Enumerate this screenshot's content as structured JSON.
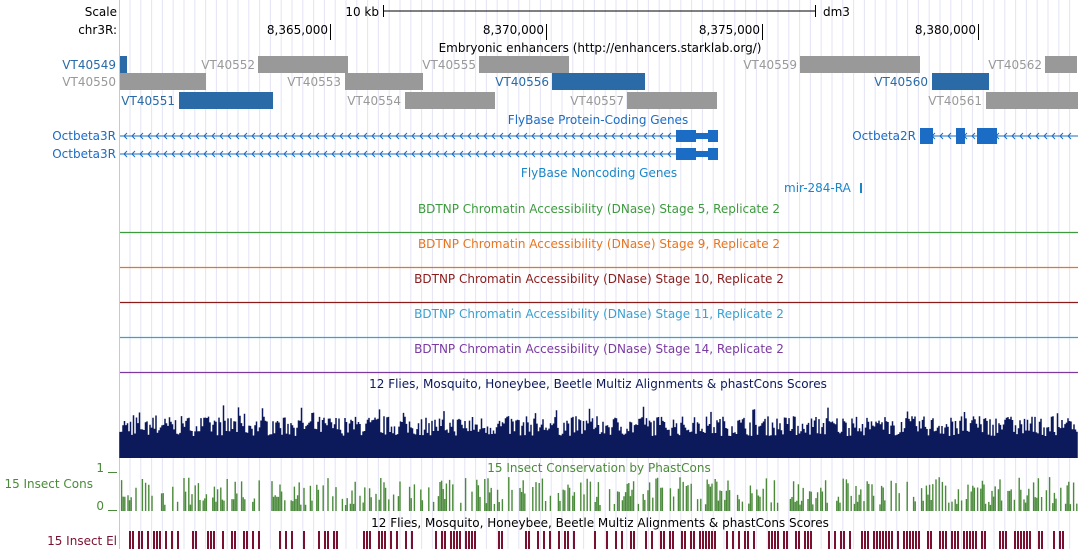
{
  "scale": {
    "label": "Scale",
    "bar_label": "10 kb",
    "assembly": "dm3",
    "chrom_label": "chr3R:",
    "positions": [
      "8,365,000",
      "8,370,000",
      "8,375,000",
      "8,380,000"
    ]
  },
  "tracks": {
    "enhancers": {
      "title": "Embryonic enhancers (http://enhancers.starklab.org/)",
      "items": [
        {
          "name": "VT40549",
          "color": "#2a6aa6"
        },
        {
          "name": "VT40550",
          "color": "#999999"
        },
        {
          "name": "VT40551",
          "color": "#2a6aa6"
        },
        {
          "name": "VT40552",
          "color": "#999999"
        },
        {
          "name": "VT40553",
          "color": "#999999"
        },
        {
          "name": "VT40554",
          "color": "#999999"
        },
        {
          "name": "VT40555",
          "color": "#999999"
        },
        {
          "name": "VT40556",
          "color": "#2a6aa6"
        },
        {
          "name": "VT40557",
          "color": "#999999"
        },
        {
          "name": "VT40559",
          "color": "#999999"
        },
        {
          "name": "VT40560",
          "color": "#2a6aa6"
        },
        {
          "name": "VT40562",
          "color": "#999999"
        },
        {
          "name": "VT40561",
          "color": "#999999"
        }
      ]
    },
    "flybase_coding": {
      "title": "FlyBase Protein-Coding Genes",
      "genes": [
        "Octbeta3R",
        "Octbeta3R",
        "Octbeta2R"
      ],
      "color": "#1a6cc4"
    },
    "flybase_noncoding": {
      "title": "FlyBase Noncoding Genes",
      "genes": [
        "mir-284-RA"
      ],
      "color": "#1a86c8"
    },
    "dnase": [
      {
        "title": "BDTNP Chromatin Accessibility (DNase) Stage 5, Replicate 2",
        "color": "#3e9a3e"
      },
      {
        "title": "BDTNP Chromatin Accessibility (DNase) Stage 9, Replicate 2",
        "color": "#e8741e"
      },
      {
        "title": "BDTNP Chromatin Accessibility (DNase) Stage 10, Replicate 2",
        "color": "#8a1c1c"
      },
      {
        "title": "BDTNP Chromatin Accessibility (DNase) Stage 11, Replicate 2",
        "color": "#3aa0d0"
      },
      {
        "title": "BDTNP Chromatin Accessibility (DNase) Stage 14, Replicate 2",
        "color": "#7a3aa0"
      }
    ],
    "multiz": {
      "title": "12 Flies, Mosquito, Honeybee, Beetle Multiz Alignments & phastCons Scores",
      "color": "#0c1a5c"
    },
    "phastcons": {
      "title": "15 Insect Conservation by PhastCons",
      "side_label": "15 Insect Cons",
      "ymax_label": "1",
      "ymin_label": "0",
      "color": "#4a8a3a"
    },
    "elements": {
      "title": "12 Flies, Mosquito, Honeybee, Beetle Multiz Alignments & phastCons Scores",
      "side_label": "15 Insect El",
      "color": "#7a1030"
    }
  }
}
